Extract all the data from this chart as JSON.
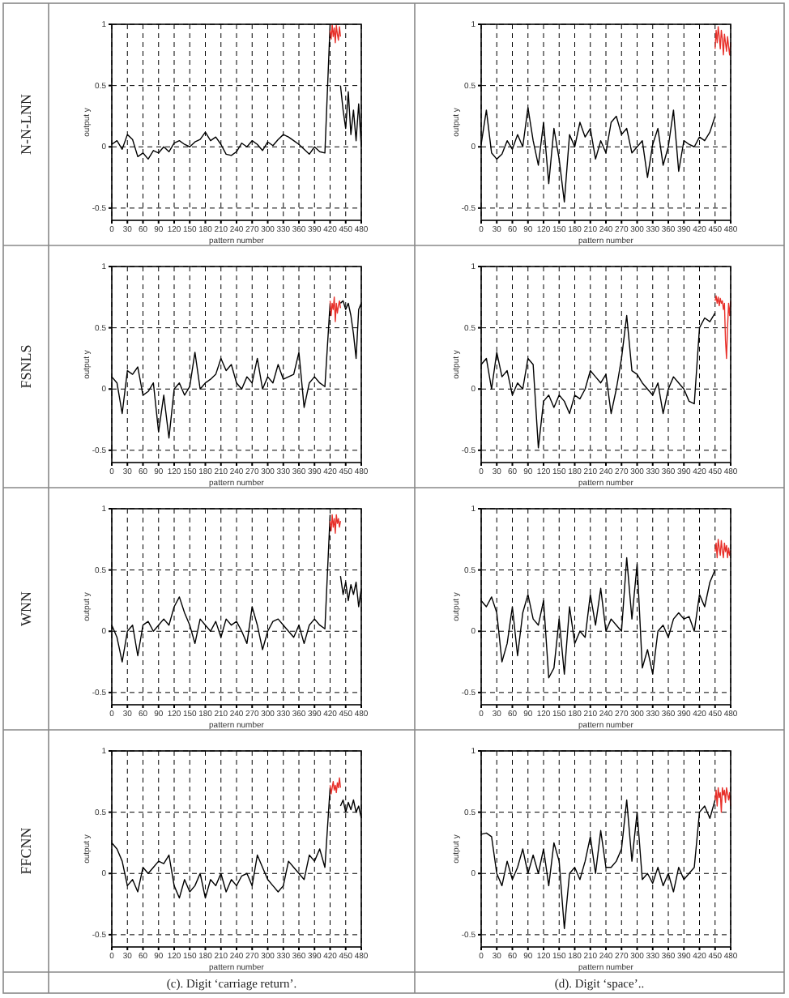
{
  "chart_data": [
    {
      "type": "line",
      "xlabel": "pattern number",
      "ylabel": "output y",
      "xlim": [
        0,
        480
      ],
      "xticks": [
        0,
        30,
        60,
        90,
        120,
        150,
        180,
        210,
        240,
        270,
        300,
        330,
        360,
        390,
        420,
        450,
        480
      ],
      "ylim": [
        -0.6,
        1
      ],
      "yticks": [
        -0.5,
        0,
        0.5,
        1
      ],
      "grid": true,
      "annotations": [
        "N-N-LNN"
      ],
      "series": [
        {
          "color": "#000000",
          "x": [
            0,
            10,
            20,
            30,
            40,
            50,
            60,
            70,
            80,
            90,
            100,
            110,
            120,
            130,
            140,
            150,
            160,
            170,
            180,
            190,
            200,
            210,
            220,
            230,
            240,
            250,
            260,
            270,
            280,
            290,
            300,
            310,
            320,
            330,
            340,
            350,
            360,
            370,
            380,
            390,
            400,
            410,
            420,
            430,
            440,
            445,
            450,
            455,
            460,
            465,
            470,
            475,
            480
          ],
          "values": [
            0.02,
            0.05,
            -0.02,
            0.1,
            0.06,
            -0.08,
            -0.05,
            -0.1,
            -0.03,
            -0.05,
            0.0,
            -0.04,
            0.03,
            0.05,
            0.02,
            0.0,
            0.04,
            0.06,
            0.12,
            0.05,
            0.08,
            0.02,
            -0.06,
            -0.07,
            -0.04,
            0.03,
            0.0,
            0.05,
            0.02,
            -0.03,
            0.04,
            0.01,
            0.06,
            0.1,
            0.08,
            0.05,
            0.02,
            -0.02,
            -0.06,
            0.0,
            -0.04,
            -0.05,
            1.0,
            null,
            0.5,
            0.3,
            0.15,
            0.45,
            0.1,
            0.3,
            0.05,
            0.35,
            0.0
          ]
        },
        {
          "color": "#e8302a",
          "x": [
            420,
            422,
            424,
            426,
            428,
            430,
            432,
            434,
            436,
            438,
            440
          ],
          "values": [
            0.95,
            0.88,
            1.0,
            0.9,
            0.97,
            0.85,
            0.99,
            0.92,
            0.87,
            0.98,
            0.9
          ]
        }
      ]
    },
    {
      "type": "line",
      "xlabel": "pattern number",
      "ylabel": "output y",
      "xlim": [
        0,
        480
      ],
      "xticks": [
        0,
        30,
        60,
        90,
        120,
        150,
        180,
        210,
        240,
        270,
        300,
        330,
        360,
        390,
        420,
        450,
        480
      ],
      "ylim": [
        -0.6,
        1
      ],
      "yticks": [
        -0.5,
        0,
        0.5,
        1
      ],
      "grid": true,
      "series": [
        {
          "color": "#000000",
          "x": [
            0,
            10,
            20,
            30,
            40,
            50,
            60,
            70,
            80,
            90,
            100,
            110,
            120,
            130,
            140,
            150,
            160,
            170,
            180,
            190,
            200,
            210,
            220,
            230,
            240,
            250,
            260,
            270,
            280,
            290,
            300,
            310,
            320,
            330,
            340,
            350,
            360,
            370,
            380,
            390,
            400,
            410,
            420,
            430,
            440,
            450
          ],
          "values": [
            0.02,
            0.3,
            -0.05,
            -0.1,
            -0.06,
            0.05,
            -0.02,
            0.1,
            0.0,
            0.32,
            0.05,
            -0.15,
            0.2,
            -0.3,
            0.15,
            -0.1,
            -0.45,
            0.1,
            0.0,
            0.2,
            0.08,
            0.15,
            -0.1,
            0.05,
            -0.05,
            0.2,
            0.25,
            0.1,
            0.15,
            -0.05,
            0.0,
            0.05,
            -0.25,
            0.02,
            0.15,
            -0.15,
            0.0,
            0.3,
            -0.2,
            0.05,
            0.02,
            0.0,
            0.08,
            0.05,
            0.12,
            0.25
          ]
        },
        {
          "color": "#e8302a",
          "x": [
            450,
            452,
            454,
            456,
            458,
            460,
            462,
            464,
            466,
            468,
            470,
            472,
            474,
            476,
            478,
            480
          ],
          "values": [
            0.8,
            0.95,
            0.85,
            0.98,
            0.9,
            0.8,
            0.95,
            0.88,
            0.75,
            0.92,
            0.85,
            0.78,
            0.9,
            0.82,
            0.75,
            0.85
          ]
        }
      ]
    },
    {
      "type": "line",
      "xlabel": "pattern number",
      "ylabel": "output y",
      "xlim": [
        0,
        480
      ],
      "xticks": [
        0,
        30,
        60,
        90,
        120,
        150,
        180,
        210,
        240,
        270,
        300,
        330,
        360,
        390,
        420,
        450,
        480
      ],
      "ylim": [
        -0.6,
        1
      ],
      "yticks": [
        -0.5,
        0,
        0.5,
        1
      ],
      "grid": true,
      "annotations": [
        "FSNLS"
      ],
      "series": [
        {
          "color": "#000000",
          "x": [
            0,
            10,
            20,
            30,
            40,
            50,
            60,
            70,
            80,
            90,
            100,
            110,
            120,
            130,
            140,
            150,
            160,
            170,
            180,
            190,
            200,
            210,
            220,
            230,
            240,
            250,
            260,
            270,
            280,
            290,
            300,
            310,
            320,
            330,
            340,
            350,
            360,
            370,
            380,
            390,
            400,
            410,
            420,
            430,
            440,
            445,
            450,
            455,
            460,
            465,
            470,
            475,
            480
          ],
          "values": [
            0.1,
            0.05,
            -0.2,
            0.15,
            0.12,
            0.18,
            -0.05,
            -0.02,
            0.05,
            -0.35,
            -0.05,
            -0.4,
            0.0,
            0.05,
            -0.05,
            0.02,
            0.3,
            0.0,
            0.05,
            0.08,
            0.12,
            0.25,
            0.15,
            0.2,
            0.05,
            0.0,
            0.1,
            0.05,
            0.25,
            0.0,
            0.1,
            0.05,
            0.2,
            0.08,
            0.1,
            0.12,
            0.3,
            -0.15,
            0.05,
            0.1,
            0.05,
            0.02,
            0.7,
            null,
            0.7,
            0.72,
            0.65,
            0.7,
            0.6,
            0.45,
            0.25,
            0.65,
            0.7
          ]
        },
        {
          "color": "#e8302a",
          "x": [
            420,
            422,
            424,
            426,
            428,
            430,
            432,
            434,
            436,
            438,
            440
          ],
          "values": [
            0.72,
            0.6,
            0.7,
            0.65,
            0.75,
            0.55,
            0.7,
            0.62,
            0.68,
            0.72,
            0.66
          ]
        }
      ]
    },
    {
      "type": "line",
      "xlabel": "pattern number",
      "ylabel": "output y",
      "xlim": [
        0,
        480
      ],
      "xticks": [
        0,
        30,
        60,
        90,
        120,
        150,
        180,
        210,
        240,
        270,
        300,
        330,
        360,
        390,
        420,
        450,
        480
      ],
      "ylim": [
        -0.6,
        1
      ],
      "yticks": [
        -0.5,
        0,
        0.5,
        1
      ],
      "grid": true,
      "series": [
        {
          "color": "#000000",
          "x": [
            0,
            10,
            20,
            30,
            40,
            50,
            60,
            70,
            80,
            90,
            100,
            110,
            120,
            130,
            140,
            150,
            160,
            170,
            180,
            190,
            200,
            210,
            220,
            230,
            240,
            250,
            260,
            270,
            280,
            290,
            300,
            310,
            320,
            330,
            340,
            350,
            360,
            370,
            380,
            390,
            400,
            410,
            420,
            430,
            440,
            450
          ],
          "values": [
            0.2,
            0.25,
            0.0,
            0.3,
            0.1,
            0.15,
            -0.05,
            0.05,
            0.0,
            0.25,
            0.2,
            -0.48,
            -0.1,
            -0.05,
            -0.15,
            -0.05,
            -0.1,
            -0.2,
            -0.05,
            -0.08,
            0.0,
            0.15,
            0.1,
            0.05,
            0.12,
            -0.2,
            0.0,
            0.25,
            0.6,
            0.15,
            0.12,
            0.05,
            0.0,
            -0.05,
            0.05,
            -0.2,
            0.0,
            0.1,
            0.05,
            0.0,
            -0.1,
            -0.12,
            0.5,
            0.58,
            0.55,
            0.62
          ]
        },
        {
          "color": "#e8302a",
          "x": [
            450,
            452,
            454,
            456,
            458,
            460,
            462,
            464,
            466,
            468,
            470,
            472,
            474,
            476,
            478,
            480
          ],
          "values": [
            0.72,
            0.76,
            0.7,
            0.75,
            0.68,
            0.74,
            0.7,
            0.72,
            0.65,
            0.7,
            0.4,
            0.25,
            0.5,
            0.7,
            0.6,
            0.72
          ]
        }
      ]
    },
    {
      "type": "line",
      "xlabel": "pattern number",
      "ylabel": "output y",
      "xlim": [
        0,
        480
      ],
      "xticks": [
        0,
        30,
        60,
        90,
        120,
        150,
        180,
        210,
        240,
        270,
        300,
        330,
        360,
        390,
        420,
        450,
        480
      ],
      "ylim": [
        -0.6,
        1
      ],
      "yticks": [
        -0.5,
        0,
        0.5,
        1
      ],
      "grid": true,
      "annotations": [
        "WNN"
      ],
      "series": [
        {
          "color": "#000000",
          "x": [
            0,
            10,
            20,
            30,
            40,
            50,
            60,
            70,
            80,
            90,
            100,
            110,
            120,
            130,
            140,
            150,
            160,
            170,
            180,
            190,
            200,
            210,
            220,
            230,
            240,
            250,
            260,
            270,
            280,
            290,
            300,
            310,
            320,
            330,
            340,
            350,
            360,
            370,
            380,
            390,
            400,
            410,
            420,
            430,
            440,
            445,
            450,
            455,
            460,
            465,
            470,
            475,
            480
          ],
          "values": [
            0.05,
            -0.05,
            -0.25,
            0.0,
            0.05,
            -0.2,
            0.05,
            0.08,
            0.0,
            0.05,
            0.1,
            0.05,
            0.2,
            0.28,
            0.15,
            0.05,
            -0.1,
            0.1,
            0.05,
            0.0,
            0.08,
            -0.05,
            0.1,
            0.05,
            0.08,
            0.0,
            -0.1,
            0.2,
            0.05,
            -0.15,
            0.0,
            0.08,
            0.1,
            0.05,
            0.0,
            -0.05,
            0.05,
            -0.1,
            0.05,
            0.1,
            0.05,
            0.02,
            0.95,
            null,
            0.45,
            0.3,
            0.4,
            0.25,
            0.38,
            0.3,
            0.4,
            0.2,
            0.35
          ]
        },
        {
          "color": "#e8302a",
          "x": [
            420,
            422,
            424,
            426,
            428,
            430,
            432,
            434,
            436,
            438,
            440
          ],
          "values": [
            0.9,
            0.82,
            0.95,
            0.85,
            0.92,
            0.8,
            0.95,
            0.88,
            0.92,
            0.85,
            0.9
          ]
        }
      ]
    },
    {
      "type": "line",
      "xlabel": "pattern number",
      "ylabel": "output y",
      "xlim": [
        0,
        480
      ],
      "xticks": [
        0,
        30,
        60,
        90,
        120,
        150,
        180,
        210,
        240,
        270,
        300,
        330,
        360,
        390,
        420,
        450,
        480
      ],
      "ylim": [
        -0.6,
        1
      ],
      "yticks": [
        -0.5,
        0,
        0.5,
        1
      ],
      "grid": true,
      "series": [
        {
          "color": "#000000",
          "x": [
            0,
            10,
            20,
            30,
            40,
            50,
            60,
            70,
            80,
            90,
            100,
            110,
            120,
            130,
            140,
            150,
            160,
            170,
            180,
            190,
            200,
            210,
            220,
            230,
            240,
            250,
            260,
            270,
            280,
            290,
            300,
            310,
            320,
            330,
            340,
            350,
            360,
            370,
            380,
            390,
            400,
            410,
            420,
            430,
            440,
            450
          ],
          "values": [
            0.25,
            0.2,
            0.28,
            0.15,
            -0.25,
            -0.1,
            0.2,
            -0.2,
            0.15,
            0.3,
            0.1,
            0.05,
            0.25,
            -0.38,
            -0.3,
            0.1,
            -0.35,
            0.2,
            -0.1,
            0.0,
            -0.05,
            0.3,
            0.05,
            0.35,
            0.0,
            0.1,
            0.05,
            0.0,
            0.6,
            0.1,
            0.55,
            -0.3,
            -0.15,
            -0.35,
            0.0,
            0.05,
            -0.05,
            0.1,
            0.15,
            0.1,
            0.12,
            0.0,
            0.3,
            0.2,
            0.4,
            0.5
          ]
        },
        {
          "color": "#e8302a",
          "x": [
            450,
            452,
            454,
            456,
            458,
            460,
            462,
            464,
            466,
            468,
            470,
            472,
            474,
            476,
            478,
            480
          ],
          "values": [
            0.65,
            0.72,
            0.6,
            0.75,
            0.68,
            0.62,
            0.74,
            0.66,
            0.6,
            0.72,
            0.65,
            0.7,
            0.6,
            0.68,
            0.62,
            0.66
          ]
        }
      ]
    },
    {
      "type": "line",
      "xlabel": "pattern number",
      "ylabel": "output y",
      "xlim": [
        0,
        480
      ],
      "xticks": [
        0,
        30,
        60,
        90,
        120,
        150,
        180,
        210,
        240,
        270,
        300,
        330,
        360,
        390,
        420,
        450,
        480
      ],
      "ylim": [
        -0.6,
        1
      ],
      "yticks": [
        -0.5,
        0,
        0.5,
        1
      ],
      "grid": true,
      "annotations": [
        "FFCNN",
        "(c). Digit ‘carriage return’."
      ],
      "series": [
        {
          "color": "#000000",
          "x": [
            0,
            10,
            20,
            30,
            40,
            50,
            60,
            70,
            80,
            90,
            100,
            110,
            120,
            130,
            140,
            150,
            160,
            170,
            180,
            190,
            200,
            210,
            220,
            230,
            240,
            250,
            260,
            270,
            280,
            290,
            300,
            310,
            320,
            330,
            340,
            350,
            360,
            370,
            380,
            390,
            400,
            410,
            420,
            430,
            440,
            445,
            450,
            455,
            460,
            465,
            470,
            475,
            480
          ],
          "values": [
            0.25,
            0.2,
            0.1,
            -0.1,
            -0.05,
            -0.15,
            0.05,
            0.0,
            0.05,
            0.1,
            0.08,
            0.15,
            -0.1,
            -0.2,
            -0.05,
            -0.15,
            -0.1,
            0.0,
            -0.2,
            -0.05,
            -0.1,
            0.0,
            -0.15,
            -0.05,
            -0.1,
            -0.02,
            0.0,
            -0.1,
            0.15,
            0.05,
            -0.05,
            -0.1,
            -0.15,
            -0.1,
            0.1,
            0.05,
            0.0,
            -0.05,
            0.15,
            0.1,
            0.2,
            0.05,
            0.7,
            null,
            0.55,
            0.6,
            0.5,
            0.58,
            0.52,
            0.6,
            0.5,
            0.55,
            0.45
          ]
        },
        {
          "color": "#e8302a",
          "x": [
            420,
            422,
            424,
            426,
            428,
            430,
            432,
            434,
            436,
            438,
            440
          ],
          "values": [
            0.72,
            0.65,
            0.7,
            0.75,
            0.68,
            0.72,
            0.66,
            0.74,
            0.7,
            0.78,
            0.7
          ]
        }
      ]
    },
    {
      "type": "line",
      "xlabel": "pattern number",
      "ylabel": "output y",
      "xlim": [
        0,
        480
      ],
      "xticks": [
        0,
        30,
        60,
        90,
        120,
        150,
        180,
        210,
        240,
        270,
        300,
        330,
        360,
        390,
        420,
        450,
        480
      ],
      "ylim": [
        -0.6,
        1
      ],
      "yticks": [
        -0.5,
        0,
        0.5,
        1
      ],
      "grid": true,
      "annotations": [
        "(d). Digit ‘space’.."
      ],
      "series": [
        {
          "color": "#000000",
          "x": [
            0,
            10,
            20,
            30,
            40,
            50,
            60,
            70,
            80,
            90,
            100,
            110,
            120,
            130,
            140,
            150,
            160,
            170,
            180,
            190,
            200,
            210,
            220,
            230,
            240,
            250,
            260,
            270,
            280,
            290,
            300,
            310,
            320,
            330,
            340,
            350,
            360,
            370,
            380,
            390,
            400,
            410,
            420,
            430,
            440,
            450
          ],
          "values": [
            0.32,
            0.33,
            0.3,
            0.0,
            -0.1,
            0.1,
            -0.05,
            0.05,
            0.2,
            0.0,
            0.15,
            0.0,
            0.2,
            -0.1,
            0.25,
            0.1,
            -0.45,
            0.0,
            0.05,
            -0.05,
            0.1,
            0.3,
            0.0,
            0.35,
            0.05,
            0.05,
            0.1,
            0.2,
            0.6,
            0.1,
            0.5,
            -0.05,
            0.0,
            -0.08,
            0.05,
            -0.1,
            0.0,
            -0.15,
            0.05,
            -0.05,
            0.0,
            0.05,
            0.5,
            0.55,
            0.45,
            0.6
          ]
        },
        {
          "color": "#e8302a",
          "x": [
            450,
            452,
            454,
            456,
            458,
            460,
            462,
            464,
            466,
            468,
            470,
            472,
            474,
            476,
            478,
            480
          ],
          "values": [
            0.6,
            0.68,
            0.55,
            0.7,
            0.62,
            0.66,
            0.5,
            0.7,
            0.64,
            0.68,
            0.58,
            0.7,
            0.65,
            0.6,
            0.66,
            0.55
          ]
        }
      ]
    }
  ]
}
